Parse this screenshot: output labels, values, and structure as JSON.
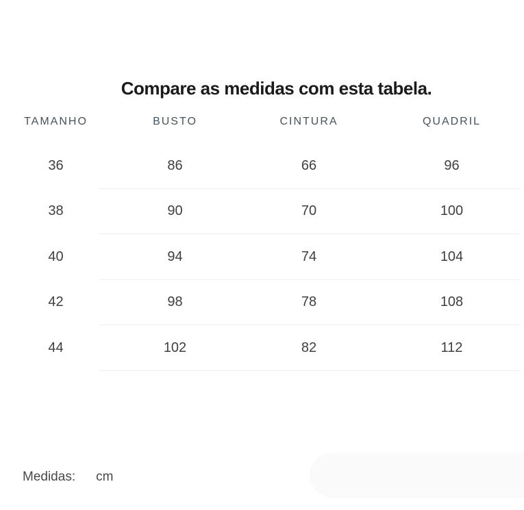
{
  "title": "Compare as medidas com esta tabela.",
  "table": {
    "headers": [
      "TAMANHO",
      "BUSTO",
      "CINTURA",
      "QUADRIL"
    ],
    "rows": [
      [
        "36",
        "86",
        "66",
        "96"
      ],
      [
        "38",
        "90",
        "70",
        "100"
      ],
      [
        "40",
        "94",
        "74",
        "104"
      ],
      [
        "42",
        "98",
        "78",
        "108"
      ],
      [
        "44",
        "102",
        "82",
        "112"
      ]
    ]
  },
  "footer": {
    "label": "Medidas:",
    "unit": "cm"
  },
  "colors": {
    "background": "#ffffff",
    "title_text": "#1b1b1b",
    "header_text": "#47525b",
    "cell_text": "#3f3f3f",
    "divider": "#efefef",
    "pill": "#fafafa"
  }
}
